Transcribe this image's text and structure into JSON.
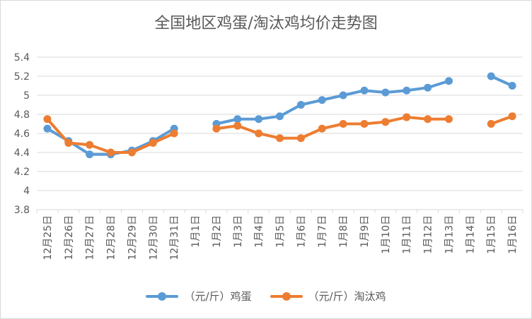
{
  "chart_data": {
    "type": "line",
    "title": "全国地区鸡蛋/淘汰鸡均价走势图",
    "categories": [
      "12月25日",
      "12月26日",
      "12月27日",
      "12月28日",
      "12月29日",
      "12月30日",
      "12月31日",
      "1月1日",
      "1月2日",
      "1月3日",
      "1月4日",
      "1月5日",
      "1月6日",
      "1月7日",
      "1月8日",
      "1月9日",
      "1月10日",
      "1月11日",
      "1月12日",
      "1月13日",
      "1月14日",
      "1月15日",
      "1月16日"
    ],
    "series": [
      {
        "name": "（元/斤）鸡蛋",
        "color": "#5b9bd5",
        "values": [
          4.65,
          4.52,
          4.38,
          4.38,
          4.42,
          4.52,
          4.65,
          null,
          4.7,
          4.75,
          4.75,
          4.78,
          4.9,
          4.95,
          5.0,
          5.05,
          5.03,
          5.05,
          5.08,
          5.15,
          null,
          5.2,
          5.1
        ]
      },
      {
        "name": "（元/斤）淘汰鸡",
        "color": "#ed7d31",
        "values": [
          4.75,
          4.5,
          4.48,
          4.4,
          4.4,
          4.5,
          4.6,
          null,
          4.65,
          4.68,
          4.6,
          4.55,
          4.55,
          4.65,
          4.7,
          4.7,
          4.72,
          4.77,
          4.75,
          4.75,
          null,
          4.7,
          4.78
        ]
      }
    ],
    "ylim": [
      3.8,
      5.4
    ],
    "yticks": [
      "3.8",
      "4",
      "4.2",
      "4.4",
      "4.6",
      "4.8",
      "5",
      "5.2",
      "5.4"
    ],
    "grid": true,
    "legend_position": "bottom"
  }
}
